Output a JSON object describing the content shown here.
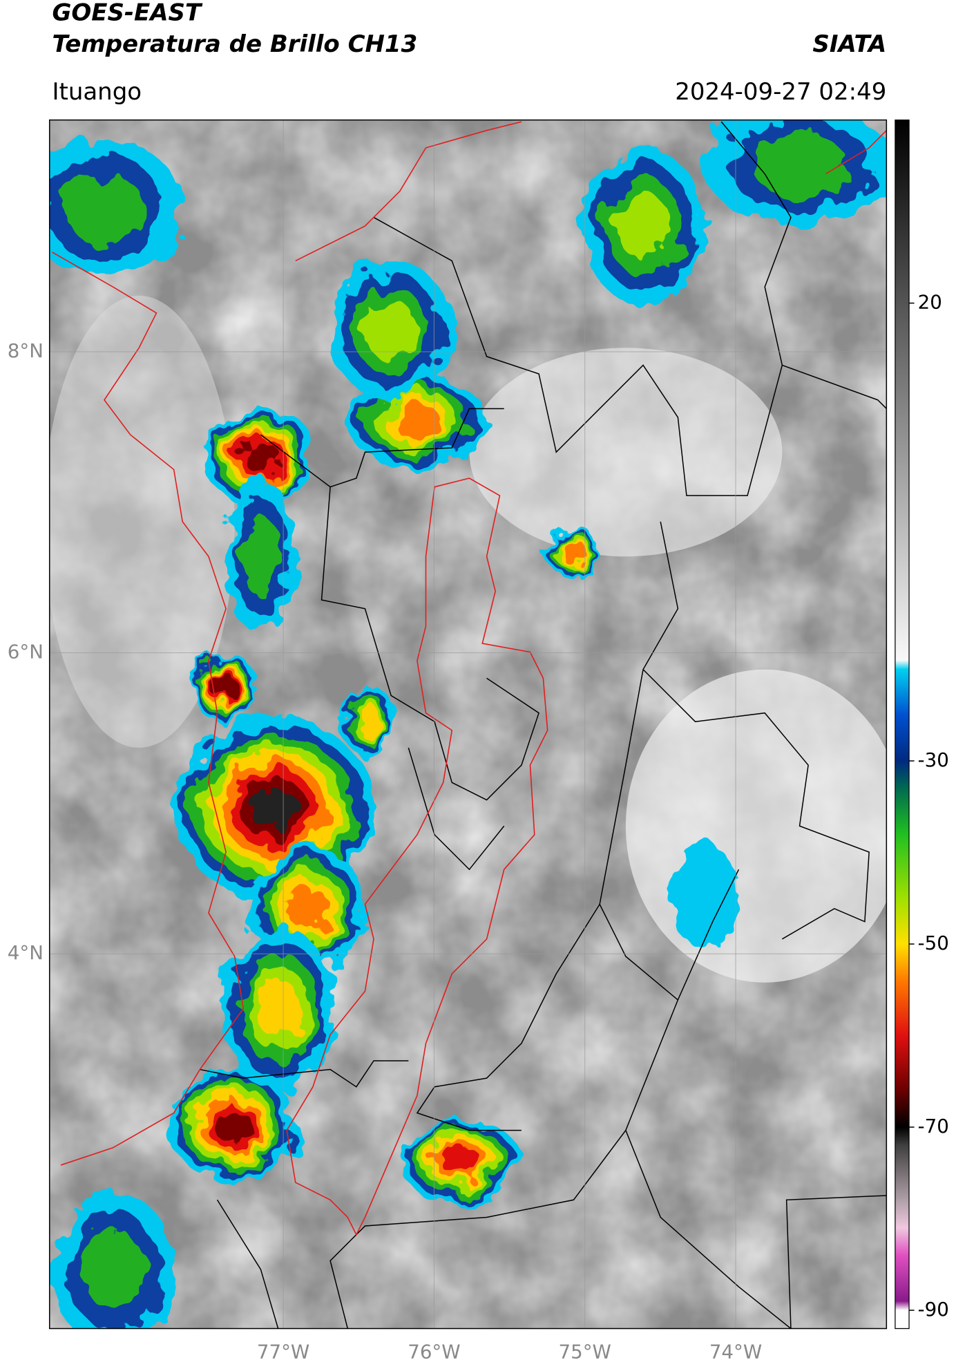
{
  "header": {
    "title": "GOES-EAST",
    "subtitle": "Temperatura de Brillo CH13",
    "source": "SIATA",
    "location": "Ituango",
    "datetime": "2024-09-27 02:49"
  },
  "map": {
    "type": "map",
    "lonlim": [
      -78.55,
      -73
    ],
    "latlim": [
      1.51,
      9.54
    ],
    "grid": true,
    "lonticks": [
      {
        "value": -77,
        "label": "77°W"
      },
      {
        "value": -76,
        "label": "76°W"
      },
      {
        "value": -75,
        "label": "75°W"
      },
      {
        "value": -74,
        "label": "74°W"
      }
    ],
    "latticks": [
      {
        "value": 8,
        "label": "8°N"
      },
      {
        "value": 6,
        "label": "6°N"
      },
      {
        "value": 4,
        "label": "4°N"
      }
    ]
  },
  "colorbar": {
    "lim": [
      -92,
      40
    ],
    "ticks": [
      20,
      -30,
      -50,
      -70,
      -90
    ],
    "stops": [
      {
        "value": -92,
        "color": "#ffffff"
      },
      {
        "value": -90,
        "color": "#ffffff"
      },
      {
        "value": -89,
        "color": "#8a1a8a"
      },
      {
        "value": -84,
        "color": "#e050c0"
      },
      {
        "value": -81,
        "color": "#f0c8e0"
      },
      {
        "value": -78,
        "color": "#b0a0a8"
      },
      {
        "value": -72,
        "color": "#404040"
      },
      {
        "value": -70,
        "color": "#000000"
      },
      {
        "value": -66,
        "color": "#6a0000"
      },
      {
        "value": -60,
        "color": "#e01010"
      },
      {
        "value": -54,
        "color": "#ff7a00"
      },
      {
        "value": -50,
        "color": "#ffe000"
      },
      {
        "value": -45,
        "color": "#a0e000"
      },
      {
        "value": -38,
        "color": "#20c020"
      },
      {
        "value": -33,
        "color": "#006a50"
      },
      {
        "value": -30,
        "color": "#002a80"
      },
      {
        "value": -25,
        "color": "#0050d0"
      },
      {
        "value": -20,
        "color": "#00d0f0"
      },
      {
        "value": -19,
        "color": "#f8f8f8"
      },
      {
        "value": 40,
        "color": "#000000"
      }
    ]
  }
}
